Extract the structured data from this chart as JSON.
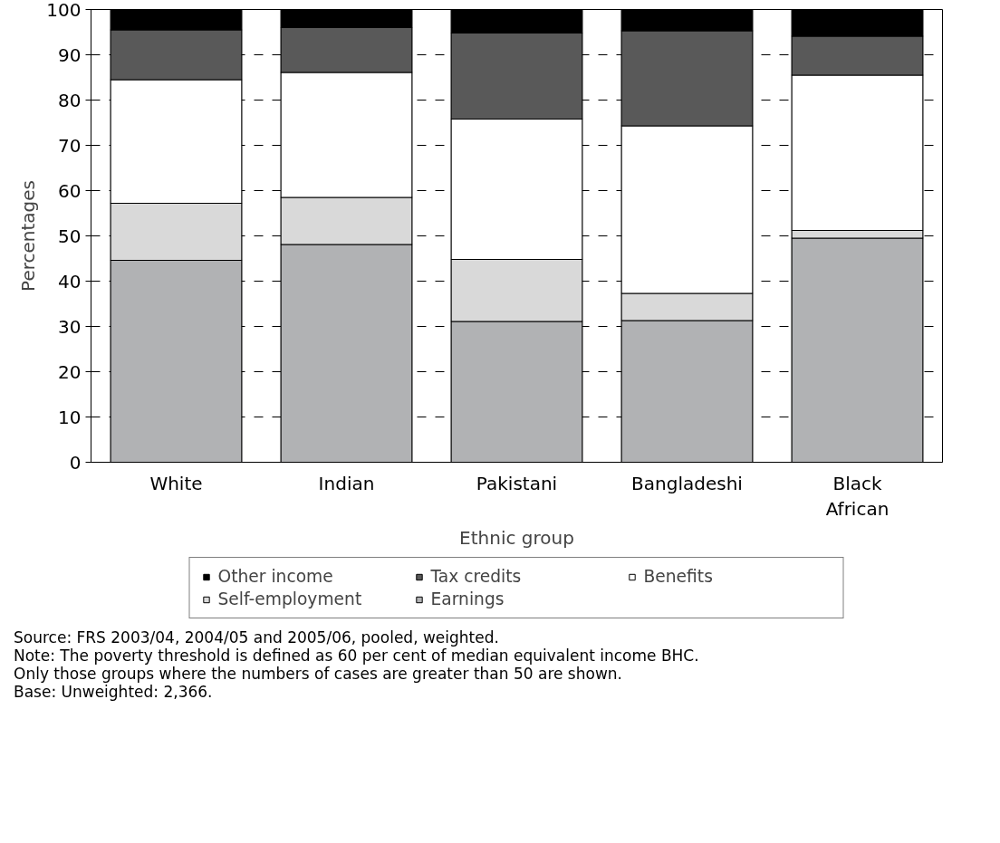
{
  "chart_data": {
    "type": "bar",
    "stacked": true,
    "xlabel": "Ethnic group",
    "ylabel": "Percentages",
    "categories": [
      "White",
      "Indian",
      "Pakistani",
      "Bangladeshi",
      "Black\nAfrican"
    ],
    "series": [
      {
        "name": "Earnings",
        "color": "#b1b2b4",
        "values": [
          44.6,
          48.1,
          31.1,
          31.3,
          49.5
        ]
      },
      {
        "name": "Self-employment",
        "color": "#d9d9d9",
        "values": [
          12.6,
          10.4,
          13.7,
          6.0,
          1.7
        ]
      },
      {
        "name": "Benefits",
        "color": "#ffffff",
        "values": [
          27.3,
          27.6,
          31.0,
          37.0,
          34.3
        ]
      },
      {
        "name": "Tax credits",
        "color": "#595959",
        "values": [
          11.0,
          9.9,
          19.0,
          21.0,
          8.6
        ]
      },
      {
        "name": "Other income",
        "color": "#000000",
        "values": [
          4.5,
          4.0,
          5.2,
          4.7,
          5.9
        ]
      }
    ],
    "ylim": [
      0,
      100
    ],
    "yticks": [
      0,
      10,
      20,
      30,
      40,
      50,
      60,
      70,
      80,
      90,
      100
    ],
    "grid": "y",
    "legend": "bottom",
    "annotations": [
      "Source: FRS 2003/04, 2004/05 and 2005/06, pooled, weighted.",
      "Note: The poverty threshold is defined as 60 per cent of median equivalent income BHC.",
      "Only those groups where the numbers of cases are greater than 50 are shown.",
      "Base: Unweighted: 2,366."
    ]
  }
}
